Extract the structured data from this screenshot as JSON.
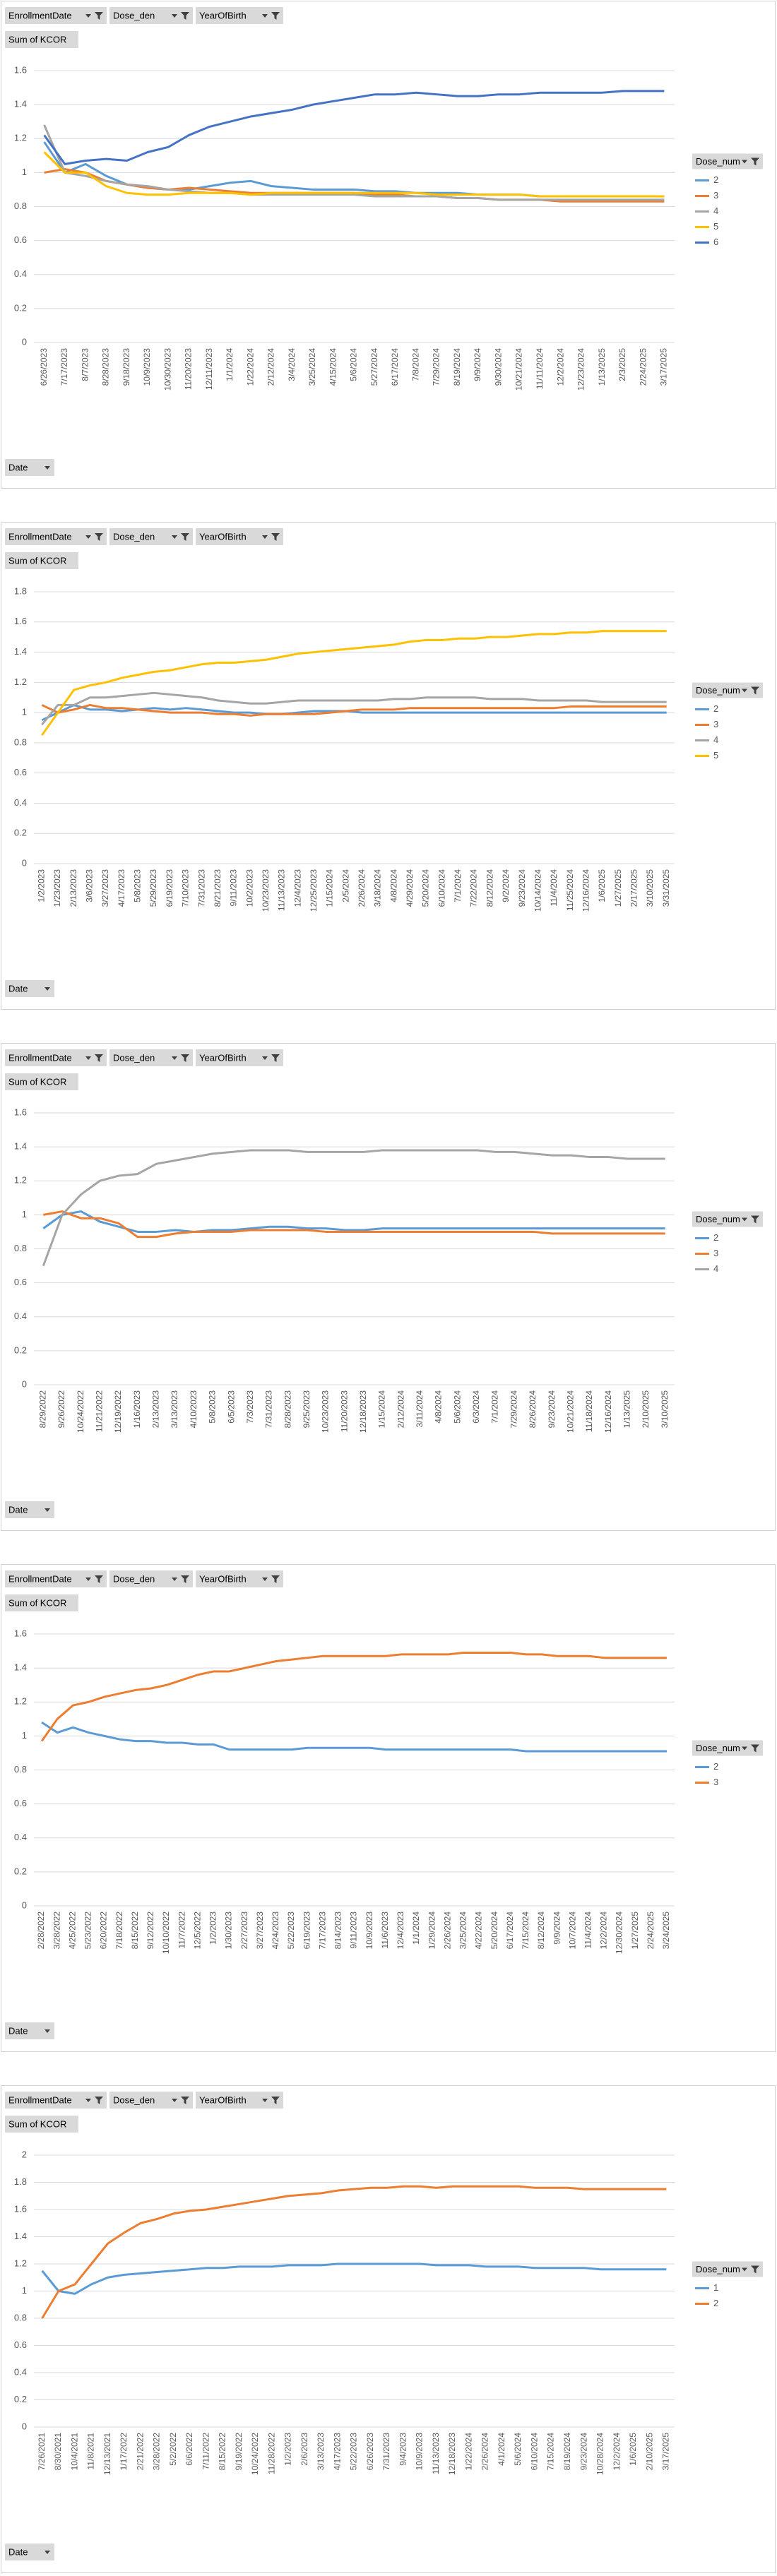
{
  "chart_data": [
    {
      "type": "line",
      "filter_buttons": [
        "EnrollmentDate",
        "Dose_den",
        "YearOfBirth"
      ],
      "value_button": "Sum of KCOR",
      "axis_button": "Date",
      "legend_title": "Dose_num",
      "legend": "right",
      "grid": true,
      "ylim": [
        0,
        1.6
      ],
      "yticks": [
        0,
        0.2,
        0.4,
        0.6,
        0.8,
        1,
        1.2,
        1.4,
        1.6
      ],
      "categories": [
        "6/26/2023",
        "7/17/2023",
        "8/7/2023",
        "8/28/2023",
        "9/18/2023",
        "10/9/2023",
        "10/30/2023",
        "11/20/2023",
        "12/11/2023",
        "1/1/2024",
        "1/22/2024",
        "2/12/2024",
        "3/4/2024",
        "3/25/2024",
        "4/15/2024",
        "5/6/2024",
        "5/27/2024",
        "6/17/2024",
        "7/8/2024",
        "7/29/2024",
        "8/19/2024",
        "9/9/2024",
        "9/30/2024",
        "10/21/2024",
        "11/11/2024",
        "12/2/2024",
        "12/23/2024",
        "1/13/2025",
        "2/3/2025",
        "2/24/2025",
        "3/17/2025"
      ],
      "series": [
        {
          "name": "2",
          "color": "#5B9BD5",
          "values": [
            1.18,
            1.0,
            1.05,
            0.98,
            0.93,
            0.91,
            0.9,
            0.9,
            0.92,
            0.94,
            0.95,
            0.92,
            0.91,
            0.9,
            0.9,
            0.9,
            0.89,
            0.89,
            0.88,
            0.88,
            0.88,
            0.87,
            0.87,
            0.87,
            0.86,
            0.86,
            0.86,
            0.86,
            0.86,
            0.86,
            0.86
          ]
        },
        {
          "name": "3",
          "color": "#ED7D31",
          "values": [
            1.0,
            1.02,
            1.0,
            0.95,
            0.93,
            0.91,
            0.9,
            0.91,
            0.9,
            0.89,
            0.88,
            0.88,
            0.88,
            0.88,
            0.88,
            0.88,
            0.87,
            0.87,
            0.86,
            0.86,
            0.85,
            0.85,
            0.84,
            0.84,
            0.84,
            0.83,
            0.83,
            0.83,
            0.83,
            0.83,
            0.83
          ]
        },
        {
          "name": "4",
          "color": "#A5A5A5",
          "values": [
            1.28,
            1.0,
            0.98,
            0.95,
            0.93,
            0.92,
            0.9,
            0.89,
            0.88,
            0.88,
            0.87,
            0.87,
            0.87,
            0.87,
            0.87,
            0.87,
            0.86,
            0.86,
            0.86,
            0.86,
            0.85,
            0.85,
            0.84,
            0.84,
            0.84,
            0.84,
            0.84,
            0.84,
            0.84,
            0.84,
            0.84
          ]
        },
        {
          "name": "5",
          "color": "#FFC000",
          "values": [
            1.12,
            1.0,
            1.0,
            0.92,
            0.88,
            0.87,
            0.87,
            0.88,
            0.88,
            0.88,
            0.87,
            0.88,
            0.88,
            0.88,
            0.88,
            0.88,
            0.88,
            0.88,
            0.88,
            0.87,
            0.87,
            0.87,
            0.87,
            0.87,
            0.86,
            0.86,
            0.86,
            0.86,
            0.86,
            0.86,
            0.86
          ]
        },
        {
          "name": "6",
          "color": "#4472C4",
          "values": [
            1.22,
            1.05,
            1.07,
            1.08,
            1.07,
            1.12,
            1.15,
            1.22,
            1.27,
            1.3,
            1.33,
            1.35,
            1.37,
            1.4,
            1.42,
            1.44,
            1.46,
            1.46,
            1.47,
            1.46,
            1.45,
            1.45,
            1.46,
            1.46,
            1.47,
            1.47,
            1.47,
            1.47,
            1.48,
            1.48,
            1.48
          ]
        }
      ]
    },
    {
      "type": "line",
      "filter_buttons": [
        "EnrollmentDate",
        "Dose_den",
        "YearOfBirth"
      ],
      "value_button": "Sum of KCOR",
      "axis_button": "Date",
      "legend_title": "Dose_num",
      "legend": "right",
      "grid": true,
      "ylim": [
        0,
        1.8
      ],
      "yticks": [
        0,
        0.2,
        0.4,
        0.6,
        0.8,
        1,
        1.2,
        1.4,
        1.6,
        1.8
      ],
      "categories": [
        "1/2/2023",
        "1/23/2023",
        "2/13/2023",
        "3/6/2023",
        "3/27/2023",
        "4/17/2023",
        "5/8/2023",
        "5/29/2023",
        "6/19/2023",
        "7/10/2023",
        "7/31/2023",
        "8/21/2023",
        "9/11/2023",
        "10/2/2023",
        "10/23/2023",
        "11/13/2023",
        "12/4/2023",
        "12/25/2023",
        "1/15/2024",
        "2/5/2024",
        "2/26/2024",
        "3/18/2024",
        "4/8/2024",
        "4/29/2024",
        "5/20/2024",
        "6/10/2024",
        "7/1/2024",
        "7/22/2024",
        "8/12/2024",
        "9/2/2024",
        "9/23/2024",
        "10/14/2024",
        "11/4/2024",
        "11/25/2024",
        "12/16/2024",
        "1/6/2025",
        "1/27/2025",
        "2/17/2025",
        "3/10/2025",
        "3/31/2025"
      ],
      "series": [
        {
          "name": "2",
          "color": "#5B9BD5",
          "values": [
            0.95,
            1.0,
            1.05,
            1.02,
            1.02,
            1.01,
            1.02,
            1.03,
            1.02,
            1.03,
            1.02,
            1.01,
            1.0,
            1.0,
            0.99,
            0.99,
            1.0,
            1.01,
            1.01,
            1.01,
            1.0,
            1.0,
            1.0,
            1.0,
            1.0,
            1.0,
            1.0,
            1.0,
            1.0,
            1.0,
            1.0,
            1.0,
            1.0,
            1.0,
            1.0,
            1.0,
            1.0,
            1.0,
            1.0,
            1.0
          ]
        },
        {
          "name": "3",
          "color": "#ED7D31",
          "values": [
            1.05,
            1.0,
            1.02,
            1.05,
            1.03,
            1.03,
            1.02,
            1.01,
            1.0,
            1.0,
            1.0,
            0.99,
            0.99,
            0.98,
            0.99,
            0.99,
            0.99,
            0.99,
            1.0,
            1.01,
            1.02,
            1.02,
            1.02,
            1.03,
            1.03,
            1.03,
            1.03,
            1.03,
            1.03,
            1.03,
            1.03,
            1.03,
            1.03,
            1.04,
            1.04,
            1.04,
            1.04,
            1.04,
            1.04,
            1.04
          ]
        },
        {
          "name": "4",
          "color": "#A5A5A5",
          "values": [
            0.92,
            1.05,
            1.05,
            1.1,
            1.1,
            1.11,
            1.12,
            1.13,
            1.12,
            1.11,
            1.1,
            1.08,
            1.07,
            1.06,
            1.06,
            1.07,
            1.08,
            1.08,
            1.08,
            1.08,
            1.08,
            1.08,
            1.09,
            1.09,
            1.1,
            1.1,
            1.1,
            1.1,
            1.09,
            1.09,
            1.09,
            1.08,
            1.08,
            1.08,
            1.08,
            1.07,
            1.07,
            1.07,
            1.07,
            1.07
          ]
        },
        {
          "name": "5",
          "color": "#FFC000",
          "values": [
            0.85,
            1.0,
            1.15,
            1.18,
            1.2,
            1.23,
            1.25,
            1.27,
            1.28,
            1.3,
            1.32,
            1.33,
            1.33,
            1.34,
            1.35,
            1.37,
            1.39,
            1.4,
            1.41,
            1.42,
            1.43,
            1.44,
            1.45,
            1.47,
            1.48,
            1.48,
            1.49,
            1.49,
            1.5,
            1.5,
            1.51,
            1.52,
            1.52,
            1.53,
            1.53,
            1.54,
            1.54,
            1.54,
            1.54,
            1.54
          ]
        }
      ]
    },
    {
      "type": "line",
      "filter_buttons": [
        "EnrollmentDate",
        "Dose_den",
        "YearOfBirth"
      ],
      "value_button": "Sum of KCOR",
      "axis_button": "Date",
      "legend_title": "Dose_num",
      "legend": "right",
      "grid": true,
      "ylim": [
        0,
        1.6
      ],
      "yticks": [
        0,
        0.2,
        0.4,
        0.6,
        0.8,
        1,
        1.2,
        1.4,
        1.6
      ],
      "categories": [
        "8/29/2022",
        "9/26/2022",
        "10/24/2022",
        "11/21/2022",
        "12/19/2022",
        "1/16/2023",
        "2/13/2023",
        "3/13/2023",
        "4/10/2023",
        "5/8/2023",
        "6/5/2023",
        "7/3/2023",
        "7/31/2023",
        "8/28/2023",
        "9/25/2023",
        "10/23/2023",
        "11/20/2023",
        "12/18/2023",
        "1/15/2024",
        "2/12/2024",
        "3/11/2024",
        "4/8/2024",
        "5/6/2024",
        "6/3/2024",
        "7/1/2024",
        "7/29/2024",
        "8/26/2024",
        "9/23/2024",
        "10/21/2024",
        "11/18/2024",
        "12/16/2024",
        "1/13/2025",
        "2/10/2025",
        "3/10/2025"
      ],
      "series": [
        {
          "name": "2",
          "color": "#5B9BD5",
          "values": [
            0.92,
            1.0,
            1.02,
            0.96,
            0.93,
            0.9,
            0.9,
            0.91,
            0.9,
            0.91,
            0.91,
            0.92,
            0.93,
            0.93,
            0.92,
            0.92,
            0.91,
            0.91,
            0.92,
            0.92,
            0.92,
            0.92,
            0.92,
            0.92,
            0.92,
            0.92,
            0.92,
            0.92,
            0.92,
            0.92,
            0.92,
            0.92,
            0.92,
            0.92
          ]
        },
        {
          "name": "3",
          "color": "#ED7D31",
          "values": [
            1.0,
            1.02,
            0.98,
            0.98,
            0.95,
            0.87,
            0.87,
            0.89,
            0.9,
            0.9,
            0.9,
            0.91,
            0.91,
            0.91,
            0.91,
            0.9,
            0.9,
            0.9,
            0.9,
            0.9,
            0.9,
            0.9,
            0.9,
            0.9,
            0.9,
            0.9,
            0.9,
            0.89,
            0.89,
            0.89,
            0.89,
            0.89,
            0.89,
            0.89
          ]
        },
        {
          "name": "4",
          "color": "#A5A5A5",
          "values": [
            0.7,
            1.0,
            1.12,
            1.2,
            1.23,
            1.24,
            1.3,
            1.32,
            1.34,
            1.36,
            1.37,
            1.38,
            1.38,
            1.38,
            1.37,
            1.37,
            1.37,
            1.37,
            1.38,
            1.38,
            1.38,
            1.38,
            1.38,
            1.38,
            1.37,
            1.37,
            1.36,
            1.35,
            1.35,
            1.34,
            1.34,
            1.33,
            1.33,
            1.33
          ]
        }
      ]
    },
    {
      "type": "line",
      "filter_buttons": [
        "EnrollmentDate",
        "Dose_den",
        "YearOfBirth"
      ],
      "value_button": "Sum of KCOR",
      "axis_button": "Date",
      "legend_title": "Dose_num",
      "legend": "right",
      "grid": true,
      "ylim": [
        0,
        1.6
      ],
      "yticks": [
        0,
        0.2,
        0.4,
        0.6,
        0.8,
        1,
        1.2,
        1.4,
        1.6
      ],
      "categories": [
        "2/28/2022",
        "3/28/2022",
        "4/25/2022",
        "5/23/2022",
        "6/20/2022",
        "7/18/2022",
        "8/15/2022",
        "9/12/2022",
        "10/10/2022",
        "11/7/2022",
        "12/5/2022",
        "1/2/2023",
        "1/30/2023",
        "2/27/2023",
        "3/27/2023",
        "4/24/2023",
        "5/22/2023",
        "6/19/2023",
        "7/17/2023",
        "8/14/2023",
        "9/11/2023",
        "10/9/2023",
        "11/6/2023",
        "12/4/2023",
        "1/1/2024",
        "1/29/2024",
        "2/26/2024",
        "3/25/2024",
        "4/22/2024",
        "5/20/2024",
        "6/17/2024",
        "7/15/2024",
        "8/12/2024",
        "9/9/2024",
        "10/7/2024",
        "11/4/2024",
        "12/2/2024",
        "12/30/2024",
        "1/27/2025",
        "2/24/2025",
        "3/24/2025"
      ],
      "series": [
        {
          "name": "2",
          "color": "#5B9BD5",
          "values": [
            1.08,
            1.02,
            1.05,
            1.02,
            1.0,
            0.98,
            0.97,
            0.97,
            0.96,
            0.96,
            0.95,
            0.95,
            0.92,
            0.92,
            0.92,
            0.92,
            0.92,
            0.93,
            0.93,
            0.93,
            0.93,
            0.93,
            0.92,
            0.92,
            0.92,
            0.92,
            0.92,
            0.92,
            0.92,
            0.92,
            0.92,
            0.91,
            0.91,
            0.91,
            0.91,
            0.91,
            0.91,
            0.91,
            0.91,
            0.91,
            0.91
          ]
        },
        {
          "name": "3",
          "color": "#ED7D31",
          "values": [
            0.97,
            1.1,
            1.18,
            1.2,
            1.23,
            1.25,
            1.27,
            1.28,
            1.3,
            1.33,
            1.36,
            1.38,
            1.38,
            1.4,
            1.42,
            1.44,
            1.45,
            1.46,
            1.47,
            1.47,
            1.47,
            1.47,
            1.47,
            1.48,
            1.48,
            1.48,
            1.48,
            1.49,
            1.49,
            1.49,
            1.49,
            1.48,
            1.48,
            1.47,
            1.47,
            1.47,
            1.46,
            1.46,
            1.46,
            1.46,
            1.46
          ]
        }
      ]
    },
    {
      "type": "line",
      "filter_buttons": [
        "EnrollmentDate",
        "Dose_den",
        "YearOfBirth"
      ],
      "value_button": "Sum of KCOR",
      "axis_button": "Date",
      "legend_title": "Dose_num",
      "legend": "right",
      "grid": true,
      "ylim": [
        0,
        2
      ],
      "yticks": [
        0,
        0.2,
        0.4,
        0.6,
        0.8,
        1,
        1.2,
        1.4,
        1.6,
        1.8,
        2
      ],
      "categories": [
        "7/26/2021",
        "8/30/2021",
        "10/4/2021",
        "11/8/2021",
        "12/13/2021",
        "1/17/2022",
        "2/21/2022",
        "3/28/2022",
        "5/2/2022",
        "6/6/2022",
        "7/11/2022",
        "8/15/2022",
        "9/19/2022",
        "10/24/2022",
        "11/28/2022",
        "1/2/2023",
        "2/6/2023",
        "3/13/2023",
        "4/17/2023",
        "5/22/2023",
        "6/26/2023",
        "7/31/2023",
        "9/4/2023",
        "10/9/2023",
        "11/13/2023",
        "12/18/2023",
        "1/22/2024",
        "2/26/2024",
        "4/1/2024",
        "5/6/2024",
        "6/10/2024",
        "7/15/2024",
        "8/19/2024",
        "9/23/2024",
        "10/28/2024",
        "12/2/2024",
        "1/6/2025",
        "2/10/2025",
        "3/17/2025"
      ],
      "series": [
        {
          "name": "1",
          "color": "#5B9BD5",
          "values": [
            1.15,
            1.0,
            0.98,
            1.05,
            1.1,
            1.12,
            1.13,
            1.14,
            1.15,
            1.16,
            1.17,
            1.17,
            1.18,
            1.18,
            1.18,
            1.19,
            1.19,
            1.19,
            1.2,
            1.2,
            1.2,
            1.2,
            1.2,
            1.2,
            1.19,
            1.19,
            1.19,
            1.18,
            1.18,
            1.18,
            1.17,
            1.17,
            1.17,
            1.17,
            1.16,
            1.16,
            1.16,
            1.16,
            1.16
          ]
        },
        {
          "name": "2",
          "color": "#ED7D31",
          "values": [
            0.8,
            1.0,
            1.05,
            1.2,
            1.35,
            1.43,
            1.5,
            1.53,
            1.57,
            1.59,
            1.6,
            1.62,
            1.64,
            1.66,
            1.68,
            1.7,
            1.71,
            1.72,
            1.74,
            1.75,
            1.76,
            1.76,
            1.77,
            1.77,
            1.76,
            1.77,
            1.77,
            1.77,
            1.77,
            1.77,
            1.76,
            1.76,
            1.76,
            1.75,
            1.75,
            1.75,
            1.75,
            1.75,
            1.75
          ]
        }
      ]
    }
  ]
}
